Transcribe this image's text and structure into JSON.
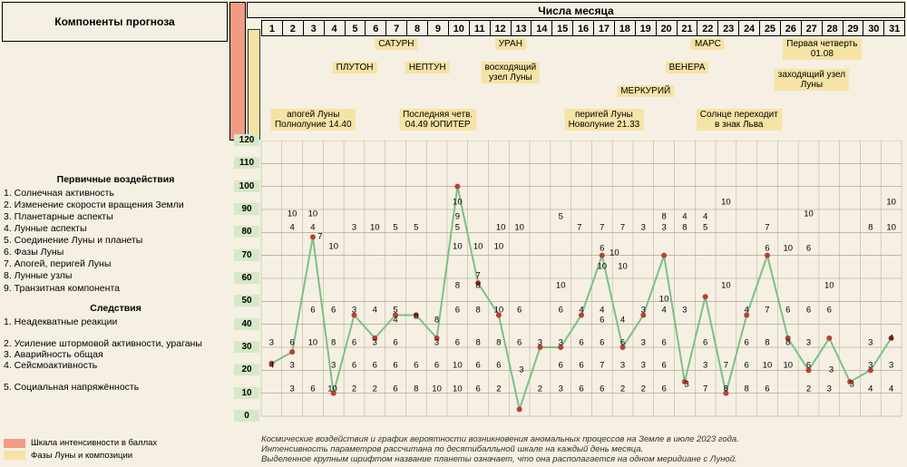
{
  "header": {
    "components": "Компоненты прогноза",
    "days": "Числа месяца",
    "ndays": 31
  },
  "colors": {
    "bg": "#f5f0e3",
    "orange": "#f19b85",
    "yellow": "#f6e3a6",
    "grid": "#a09880",
    "line": "#7bc089",
    "marker": "#bb4030",
    "ylabel_bg": "#d6e9c6"
  },
  "left_rows": {
    "primary_title": "Первичные воздействия",
    "primary": [
      "1. Солнечная активность",
      "2. Изменение скорости вращения Земли",
      "3. Планетарные аспекты",
      "4. Лунные аспекты",
      "5. Соединение Луны и планеты",
      "6. Фазы Луны",
      "7. Апогей, перигей Луны",
      "8. Лунные узлы",
      "9. Транзитная компонента"
    ],
    "effects_title": "Следствия",
    "effects": [
      "1. Неадекватные реакции",
      "2. Усиление штормовой активности, ураганы",
      "3. Аварийность общая",
      "4. Сейсмоактивность",
      "5. Социальная напряжённость"
    ]
  },
  "legend": {
    "scale": "Шкала интенсивности в баллах",
    "moon": "Фазы Луны и композиции"
  },
  "annotations": [
    {
      "text": "САТУРН",
      "day": 7,
      "row": 0
    },
    {
      "text": "УРАН",
      "day": 12.5,
      "row": 0
    },
    {
      "text": "МАРС",
      "day": 22,
      "row": 0
    },
    {
      "text": "Первая четверть\n01.08",
      "day": 27.5,
      "row": 0
    },
    {
      "text": "ПЛУТОН",
      "day": 5,
      "row": 1
    },
    {
      "text": "НЕПТУН",
      "day": 8.5,
      "row": 1
    },
    {
      "text": "восходящий\nузел Луны",
      "day": 12.5,
      "row": 1
    },
    {
      "text": "ВЕНЕРА",
      "day": 21,
      "row": 1
    },
    {
      "text": "заходящий узел\nЛуны",
      "day": 27,
      "row": 1.3
    },
    {
      "text": "МЕРКУРИЙ",
      "day": 19,
      "row": 2
    },
    {
      "text": "апогей Луны\nПолнолуние  14.40",
      "day": 3,
      "row": 3
    },
    {
      "text": "Последняя четв.\n04.49 ЮПИТЕР",
      "day": 9,
      "row": 3
    },
    {
      "text": "перигей Луны\nНоволуние  21.33",
      "day": 17,
      "row": 3
    },
    {
      "text": "Солнце переходит\nв знак Льва",
      "day": 23.5,
      "row": 3
    }
  ],
  "yaxis": {
    "min": 0,
    "max": 120,
    "step": 10
  },
  "chart": {
    "type": "line",
    "line_color": "#7bc089",
    "line_width": 2,
    "marker_color": "#bb4030",
    "marker_radius": 3,
    "values": [
      23,
      28,
      78,
      10,
      44,
      34,
      44,
      44,
      34,
      100,
      58,
      44,
      3,
      30,
      30,
      44,
      70,
      30,
      44,
      70,
      15,
      52,
      10,
      44,
      70,
      34,
      20,
      34,
      15,
      20,
      34
    ]
  },
  "number_labels": [
    {
      "day": 2,
      "y": 88,
      "t": "10"
    },
    {
      "day": 3,
      "y": 88,
      "t": "10"
    },
    {
      "day": 2,
      "y": 82,
      "t": "4"
    },
    {
      "day": 3,
      "y": 82,
      "t": "4"
    },
    {
      "day": 3.35,
      "y": 78,
      "t": "7"
    },
    {
      "day": 4,
      "y": 74,
      "t": "10"
    },
    {
      "day": 5,
      "y": 82,
      "t": "3"
    },
    {
      "day": 6,
      "y": 82,
      "t": "10"
    },
    {
      "day": 7,
      "y": 82,
      "t": "5"
    },
    {
      "day": 8,
      "y": 82,
      "t": "5"
    },
    {
      "day": 10,
      "y": 93,
      "t": "10"
    },
    {
      "day": 10,
      "y": 87,
      "t": "9"
    },
    {
      "day": 10,
      "y": 82,
      "t": "5"
    },
    {
      "day": 10,
      "y": 74,
      "t": "10"
    },
    {
      "day": 11,
      "y": 74,
      "t": "10"
    },
    {
      "day": 12,
      "y": 74,
      "t": "10"
    },
    {
      "day": 12.1,
      "y": 82,
      "t": "10"
    },
    {
      "day": 13,
      "y": 82,
      "t": "10"
    },
    {
      "day": 15,
      "y": 87,
      "t": "5"
    },
    {
      "day": 15.9,
      "y": 82,
      "t": "7"
    },
    {
      "day": 17,
      "y": 82,
      "t": "7"
    },
    {
      "day": 18,
      "y": 82,
      "t": "7"
    },
    {
      "day": 17,
      "y": 73,
      "t": "6"
    },
    {
      "day": 17.6,
      "y": 71,
      "t": "10"
    },
    {
      "day": 19,
      "y": 82,
      "t": "3"
    },
    {
      "day": 20,
      "y": 82,
      "t": "3"
    },
    {
      "day": 20,
      "y": 87,
      "t": "8"
    },
    {
      "day": 21,
      "y": 87,
      "t": "4"
    },
    {
      "day": 22,
      "y": 87,
      "t": "4"
    },
    {
      "day": 21,
      "y": 82,
      "t": "8"
    },
    {
      "day": 22,
      "y": 82,
      "t": "5"
    },
    {
      "day": 23,
      "y": 93,
      "t": "10"
    },
    {
      "day": 25,
      "y": 82,
      "t": "7"
    },
    {
      "day": 25,
      "y": 73,
      "t": "6"
    },
    {
      "day": 26,
      "y": 73,
      "t": "10"
    },
    {
      "day": 27,
      "y": 73,
      "t": "6"
    },
    {
      "day": 27,
      "y": 88,
      "t": "10"
    },
    {
      "day": 30,
      "y": 82,
      "t": "8"
    },
    {
      "day": 31,
      "y": 82,
      "t": "10"
    },
    {
      "day": 31,
      "y": 93,
      "t": "10"
    },
    {
      "day": 3,
      "y": 46,
      "t": "6"
    },
    {
      "day": 4,
      "y": 46,
      "t": "6"
    },
    {
      "day": 5,
      "y": 46,
      "t": "3"
    },
    {
      "day": 6,
      "y": 46,
      "t": "4"
    },
    {
      "day": 7,
      "y": 46,
      "t": "5"
    },
    {
      "day": 7,
      "y": 42,
      "t": "4"
    },
    {
      "day": 8,
      "y": 43.5,
      "t": "8"
    },
    {
      "day": 9,
      "y": 42,
      "t": "8"
    },
    {
      "day": 10,
      "y": 46,
      "t": "6"
    },
    {
      "day": 11,
      "y": 46,
      "t": "8"
    },
    {
      "day": 12,
      "y": 46,
      "t": "10"
    },
    {
      "day": 13,
      "y": 46,
      "t": "6"
    },
    {
      "day": 15,
      "y": 46,
      "t": "6"
    },
    {
      "day": 16,
      "y": 46,
      "t": "4"
    },
    {
      "day": 17,
      "y": 46,
      "t": "4"
    },
    {
      "day": 17,
      "y": 42,
      "t": "6"
    },
    {
      "day": 18,
      "y": 42,
      "t": "4"
    },
    {
      "day": 19,
      "y": 46,
      "t": "3"
    },
    {
      "day": 20,
      "y": 46,
      "t": "4"
    },
    {
      "day": 21,
      "y": 46,
      "t": "3"
    },
    {
      "day": 24,
      "y": 46,
      "t": "4"
    },
    {
      "day": 25,
      "y": 46,
      "t": "7"
    },
    {
      "day": 26,
      "y": 46,
      "t": "6"
    },
    {
      "day": 27,
      "y": 46,
      "t": "6"
    },
    {
      "day": 28,
      "y": 46,
      "t": "6"
    },
    {
      "day": 10,
      "y": 57,
      "t": "8"
    },
    {
      "day": 11,
      "y": 57,
      "t": "8"
    },
    {
      "day": 11,
      "y": 61,
      "t": "7"
    },
    {
      "day": 15,
      "y": 57,
      "t": "10"
    },
    {
      "day": 17,
      "y": 65,
      "t": "10"
    },
    {
      "day": 18,
      "y": 65,
      "t": "10"
    },
    {
      "day": 20,
      "y": 51,
      "t": "10"
    },
    {
      "day": 23,
      "y": 57,
      "t": "10"
    },
    {
      "day": 28,
      "y": 57,
      "t": "10"
    },
    {
      "day": 1,
      "y": 32,
      "t": "3"
    },
    {
      "day": 2,
      "y": 32,
      "t": "6"
    },
    {
      "day": 3,
      "y": 32,
      "t": "10"
    },
    {
      "day": 4,
      "y": 32,
      "t": "8"
    },
    {
      "day": 5,
      "y": 32,
      "t": "6"
    },
    {
      "day": 6,
      "y": 32,
      "t": "3"
    },
    {
      "day": 7,
      "y": 32,
      "t": "6"
    },
    {
      "day": 9,
      "y": 32,
      "t": "3"
    },
    {
      "day": 10,
      "y": 32,
      "t": "6"
    },
    {
      "day": 11,
      "y": 32,
      "t": "8"
    },
    {
      "day": 12,
      "y": 32,
      "t": "8"
    },
    {
      "day": 13,
      "y": 32,
      "t": "6"
    },
    {
      "day": 14,
      "y": 32,
      "t": "3"
    },
    {
      "day": 15,
      "y": 32,
      "t": "3"
    },
    {
      "day": 16,
      "y": 32,
      "t": "6"
    },
    {
      "day": 17,
      "y": 32,
      "t": "6"
    },
    {
      "day": 18,
      "y": 32,
      "t": "6"
    },
    {
      "day": 19,
      "y": 32,
      "t": "3"
    },
    {
      "day": 20,
      "y": 32,
      "t": "6"
    },
    {
      "day": 22,
      "y": 32,
      "t": "6"
    },
    {
      "day": 24,
      "y": 32,
      "t": "6"
    },
    {
      "day": 25,
      "y": 32,
      "t": "8"
    },
    {
      "day": 26,
      "y": 32,
      "t": "8"
    },
    {
      "day": 27,
      "y": 32,
      "t": "3"
    },
    {
      "day": 30,
      "y": 32,
      "t": "3"
    },
    {
      "day": 31,
      "y": 34,
      "t": "4"
    },
    {
      "day": 1,
      "y": 22,
      "t": "4"
    },
    {
      "day": 2,
      "y": 22,
      "t": "3"
    },
    {
      "day": 4,
      "y": 22,
      "t": "3"
    },
    {
      "day": 5,
      "y": 22,
      "t": "6"
    },
    {
      "day": 6,
      "y": 22,
      "t": "6"
    },
    {
      "day": 7,
      "y": 22,
      "t": "6"
    },
    {
      "day": 8,
      "y": 22,
      "t": "6"
    },
    {
      "day": 9,
      "y": 22,
      "t": "6"
    },
    {
      "day": 10,
      "y": 22,
      "t": "10"
    },
    {
      "day": 11,
      "y": 22,
      "t": "6"
    },
    {
      "day": 12,
      "y": 22,
      "t": "6"
    },
    {
      "day": 13.1,
      "y": 20,
      "t": "3"
    },
    {
      "day": 15,
      "y": 22,
      "t": "6"
    },
    {
      "day": 16,
      "y": 22,
      "t": "6"
    },
    {
      "day": 17,
      "y": 22,
      "t": "7"
    },
    {
      "day": 18,
      "y": 22,
      "t": "3"
    },
    {
      "day": 19,
      "y": 22,
      "t": "3"
    },
    {
      "day": 20,
      "y": 22,
      "t": "6"
    },
    {
      "day": 22,
      "y": 22,
      "t": "3"
    },
    {
      "day": 23,
      "y": 22,
      "t": "7"
    },
    {
      "day": 24,
      "y": 22,
      "t": "6"
    },
    {
      "day": 25,
      "y": 22,
      "t": "10"
    },
    {
      "day": 26,
      "y": 22,
      "t": "10"
    },
    {
      "day": 27,
      "y": 22,
      "t": "6"
    },
    {
      "day": 28.1,
      "y": 20,
      "t": "3"
    },
    {
      "day": 30,
      "y": 22,
      "t": "3"
    },
    {
      "day": 31,
      "y": 22,
      "t": "3"
    },
    {
      "day": 2,
      "y": 12,
      "t": "3"
    },
    {
      "day": 3,
      "y": 12,
      "t": "6"
    },
    {
      "day": 3.95,
      "y": 12,
      "t": "10"
    },
    {
      "day": 5,
      "y": 12,
      "t": "2"
    },
    {
      "day": 6,
      "y": 12,
      "t": "2"
    },
    {
      "day": 7,
      "y": 12,
      "t": "6"
    },
    {
      "day": 8,
      "y": 12,
      "t": "8"
    },
    {
      "day": 9,
      "y": 12,
      "t": "10"
    },
    {
      "day": 10,
      "y": 12,
      "t": "10"
    },
    {
      "day": 11,
      "y": 12,
      "t": "6"
    },
    {
      "day": 12,
      "y": 12,
      "t": "2"
    },
    {
      "day": 14,
      "y": 12,
      "t": "2"
    },
    {
      "day": 15,
      "y": 12,
      "t": "3"
    },
    {
      "day": 16,
      "y": 12,
      "t": "6"
    },
    {
      "day": 17,
      "y": 12,
      "t": "6"
    },
    {
      "day": 18,
      "y": 12,
      "t": "2"
    },
    {
      "day": 19,
      "y": 12,
      "t": "2"
    },
    {
      "day": 20,
      "y": 12,
      "t": "6"
    },
    {
      "day": 21.1,
      "y": 14,
      "t": "3"
    },
    {
      "day": 22,
      "y": 12,
      "t": "7"
    },
    {
      "day": 23,
      "y": 12,
      "t": "8"
    },
    {
      "day": 24,
      "y": 12,
      "t": "8"
    },
    {
      "day": 25,
      "y": 12,
      "t": "6"
    },
    {
      "day": 27,
      "y": 12,
      "t": "2"
    },
    {
      "day": 28,
      "y": 12,
      "t": "3"
    },
    {
      "day": 29.1,
      "y": 14,
      "t": "3"
    },
    {
      "day": 30,
      "y": 12,
      "t": "4"
    },
    {
      "day": 31,
      "y": 12,
      "t": "4"
    }
  ],
  "footer": {
    "l1": "Космические воздействия и график вероятности возникновения аномальных процессов на Земле в июле 2023 года.",
    "l2": "Интенсивность параметров рассчитана по десятибалльной шкале на каждый день месяца.",
    "l3": "Выделенное крупным шрифтом название планеты означает, что она располагается на одном меридиане с Луной."
  }
}
